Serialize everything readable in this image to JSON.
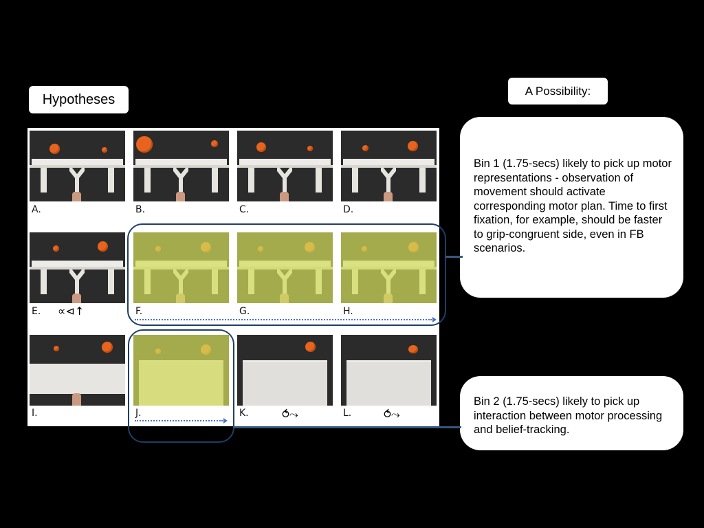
{
  "header": {
    "hypotheses_label": "Hypotheses",
    "possibility_label": "A Possibility:"
  },
  "bins": {
    "bin1_text": "Bin 1 (1.75-secs) likely to pick up motor representations - observation of movement should activate corresponding motor plan. Time to first fixation, for example, should be faster to grip-congruent side, even in FB scenarios.",
    "bin2_text": "Bin 2 (1.75-secs) likely to pick up interaction between motor processing and belief-tracking."
  },
  "panels": {
    "a": "A.",
    "b": "B.",
    "c": "C.",
    "d": "D.",
    "e": "E.",
    "f": "F.",
    "g": "G.",
    "h": "H.",
    "i": "I.",
    "j": "J.",
    "k": "K.",
    "l": "L."
  },
  "symbols": {
    "e": "∝⊲↑",
    "k": "⥀⤳",
    "l": "⥀⤳"
  },
  "colors": {
    "background": "#000000",
    "frame": "#1e3e66",
    "arrow": "#4a73c9",
    "cup": "#e8641e",
    "overlay": "#d2dc5a"
  }
}
